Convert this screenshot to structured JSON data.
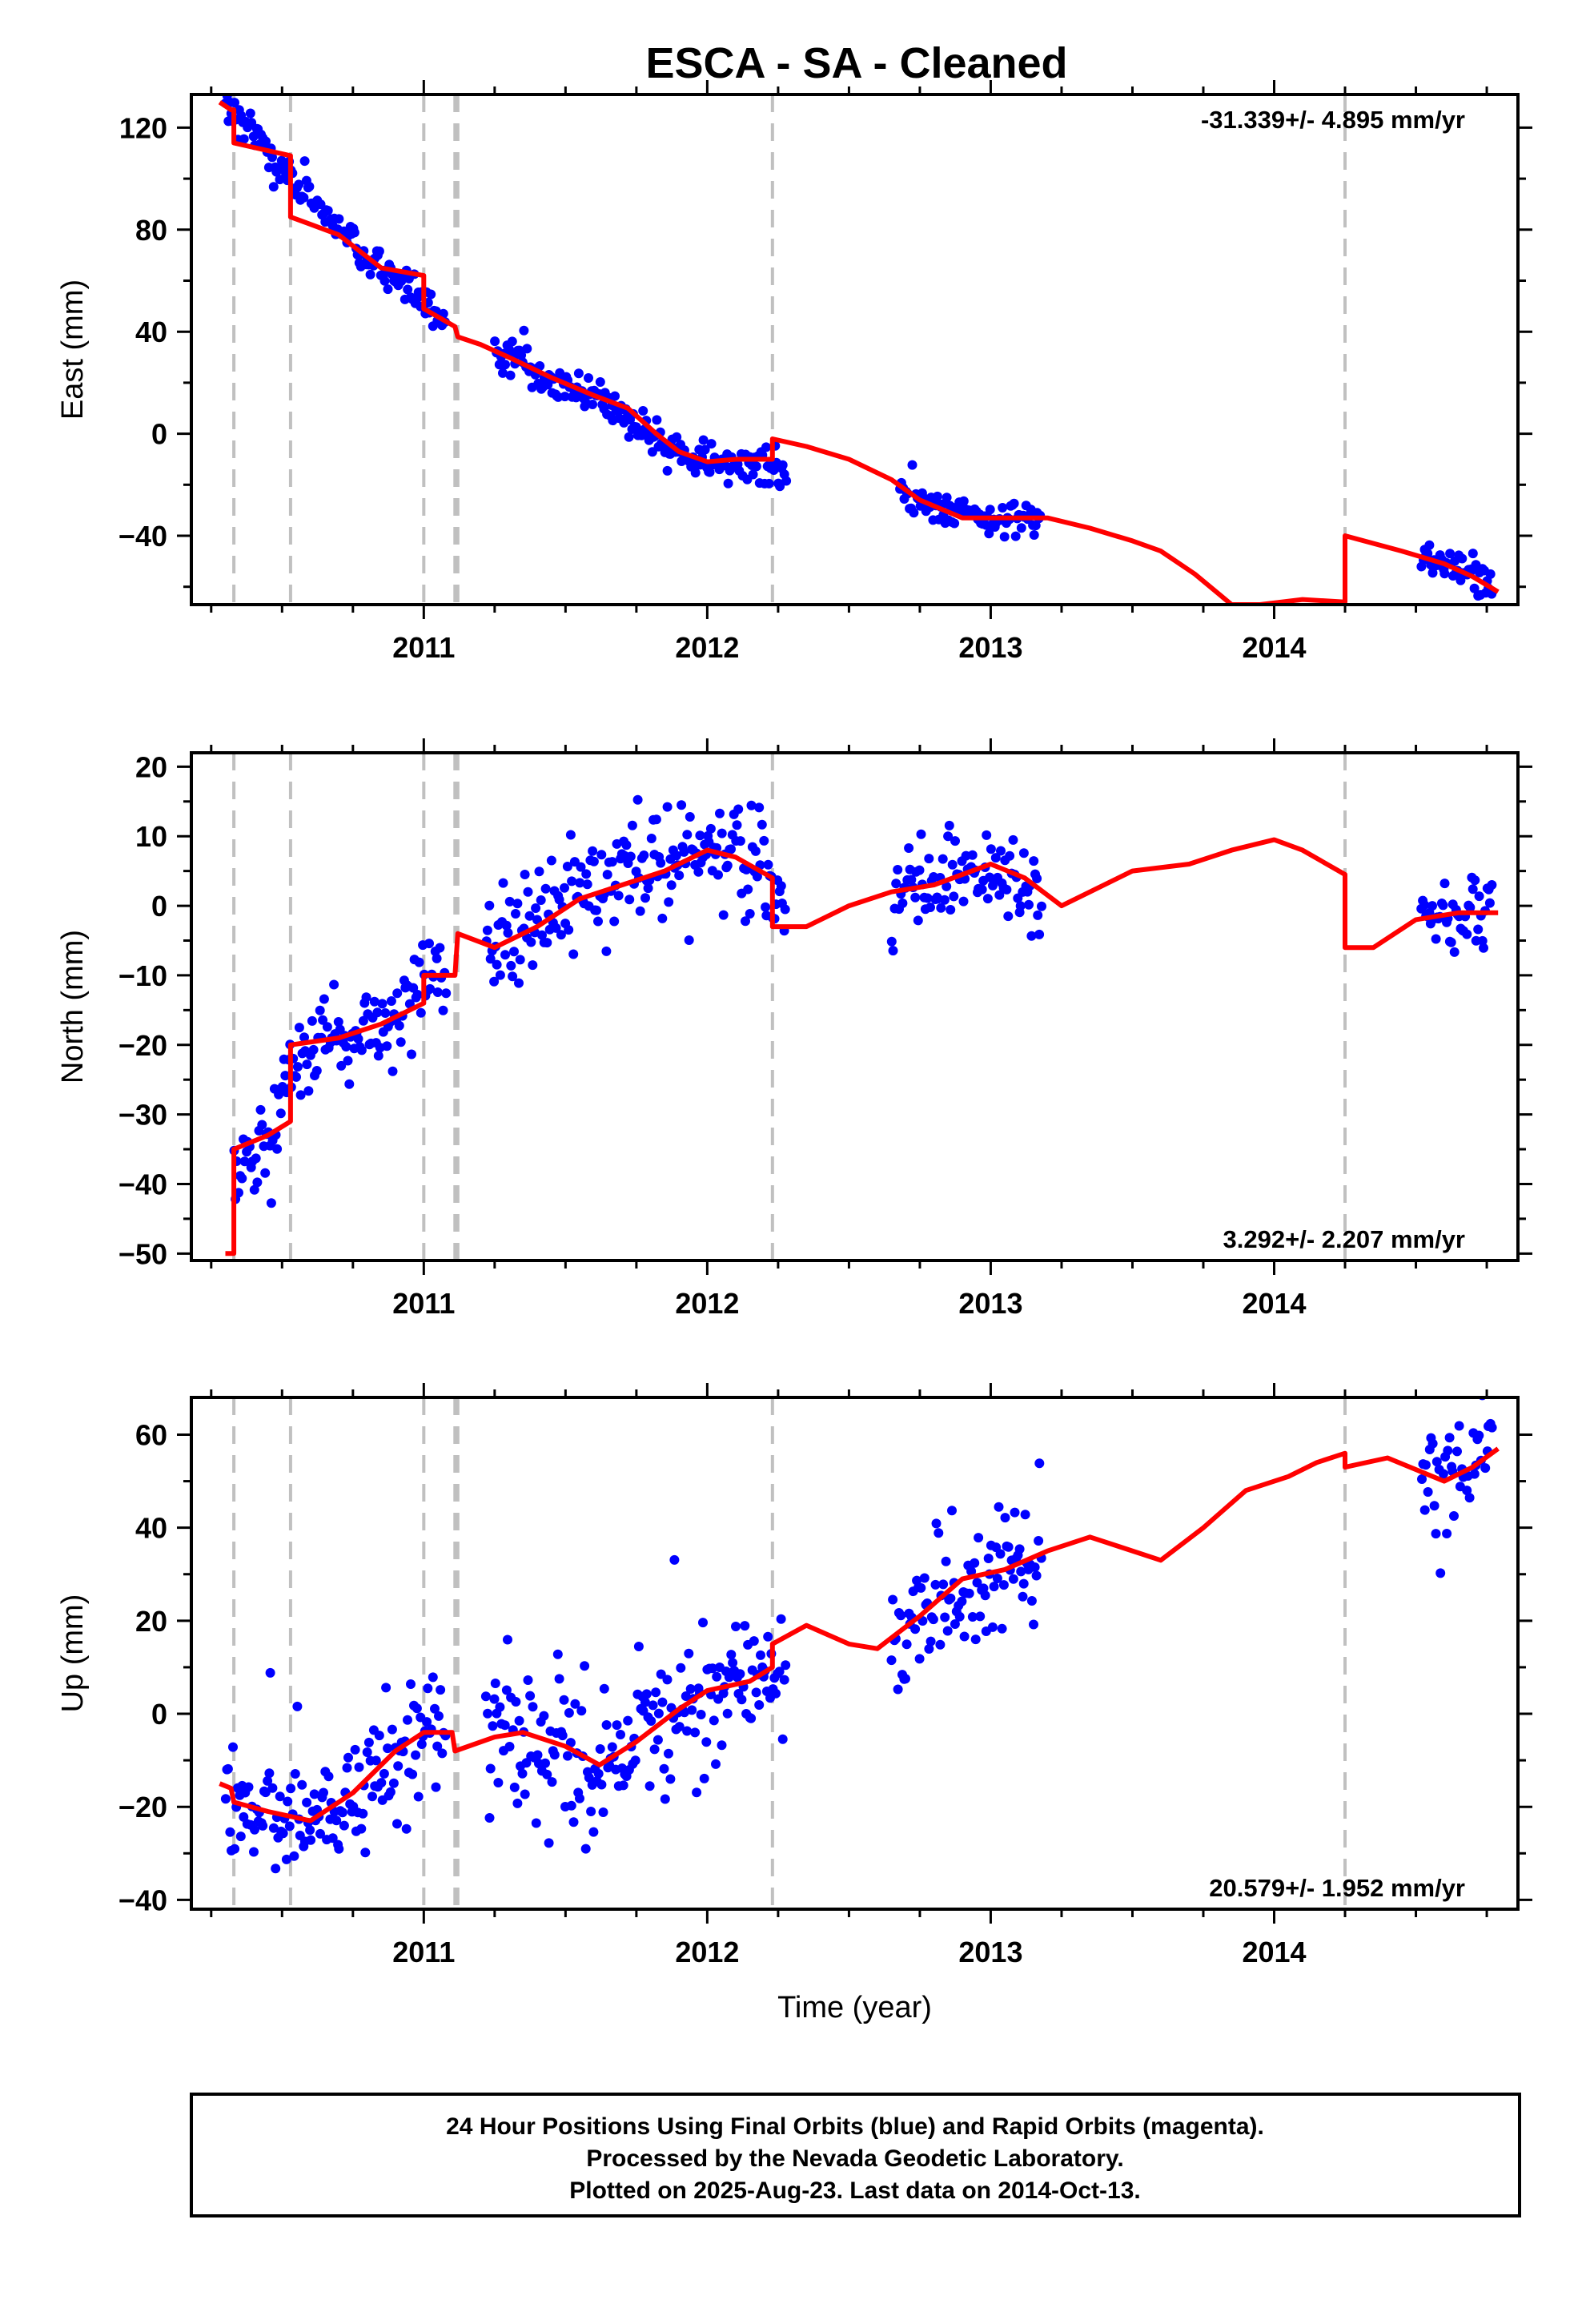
{
  "title": "ESCA  - SA - Cleaned",
  "footer": {
    "line1": "24 Hour Positions Using Final Orbits (blue) and Rapid Orbits (magenta).",
    "line2": "Processed by the Nevada Geodetic Laboratory.",
    "line3": "Plotted on 2025-Aug-23. Last data on 2014-Oct-13."
  },
  "colors": {
    "data": "#0000ff",
    "model": "#ff0000",
    "steps": "#c0c0c0",
    "frame": "#000000"
  },
  "chart_data": [
    {
      "type": "scatter",
      "ylabel": "East (mm)",
      "xlabel": "",
      "rate": "-31.339+/- 4.895 mm/yr",
      "rate_position": "top-right",
      "x_ticks": [
        "2011",
        "2012",
        "2013",
        "2014"
      ],
      "y_ticks": [
        120,
        80,
        40,
        0,
        -40
      ],
      "xlim": [
        2010.18,
        2014.86
      ],
      "ylim": [
        -67,
        133
      ],
      "step_epochs": [
        2010.33,
        2010.53,
        2011.0,
        2011.11,
        2011.12,
        2012.23,
        2014.25
      ],
      "data_segments": [
        {
          "knots": [
            [
              2010.3,
              130
            ],
            [
              2010.4,
              118
            ],
            [
              2010.53,
              100
            ],
            [
              2010.7,
              80
            ],
            [
              2010.85,
              64
            ],
            [
              2011.0,
              52
            ],
            [
              2011.05,
              46
            ],
            [
              2011.08,
              42
            ]
          ],
          "step": 0.0055,
          "spread": 3
        },
        {
          "knots": [
            [
              2011.25,
              33
            ],
            [
              2011.4,
              24
            ],
            [
              2011.6,
              14
            ],
            [
              2011.75,
              4
            ],
            [
              2011.85,
              -5
            ],
            [
              2012.0,
              -11
            ],
            [
              2012.28,
              -13
            ]
          ],
          "step": 0.0055,
          "spread": 3.5
        },
        {
          "knots": [
            [
              2012.68,
              -22
            ],
            [
              2012.85,
              -30
            ],
            [
              2013.0,
              -34
            ],
            [
              2013.18,
              -32
            ]
          ],
          "step": 0.0055,
          "spread": 3
        },
        {
          "knots": [
            [
              2014.52,
              -49
            ],
            [
              2014.65,
              -53
            ],
            [
              2014.77,
              -60
            ]
          ],
          "step": 0.0055,
          "spread": 3
        }
      ],
      "model": [
        [
          2010.28,
          130
        ],
        [
          2010.32,
          127
        ],
        [
          2010.33,
          127
        ],
        [
          2010.33,
          114
        ],
        [
          2010.53,
          109
        ],
        [
          2010.53,
          85
        ],
        [
          2010.7,
          78
        ],
        [
          2010.85,
          65
        ],
        [
          2011.0,
          62
        ],
        [
          2011.0,
          49
        ],
        [
          2011.11,
          42
        ],
        [
          2011.12,
          38
        ],
        [
          2011.2,
          35
        ],
        [
          2011.3,
          30
        ],
        [
          2011.45,
          22
        ],
        [
          2011.6,
          15
        ],
        [
          2011.72,
          10
        ],
        [
          2011.82,
          0
        ],
        [
          2011.9,
          -7
        ],
        [
          2012.0,
          -11
        ],
        [
          2012.1,
          -10
        ],
        [
          2012.23,
          -10
        ],
        [
          2012.23,
          -2
        ],
        [
          2012.35,
          -5
        ],
        [
          2012.5,
          -10
        ],
        [
          2012.65,
          -18
        ],
        [
          2012.75,
          -26
        ],
        [
          2012.9,
          -33
        ],
        [
          2013.05,
          -33
        ],
        [
          2013.2,
          -33
        ],
        [
          2013.35,
          -37
        ],
        [
          2013.5,
          -42
        ],
        [
          2013.6,
          -46
        ],
        [
          2013.72,
          -55
        ],
        [
          2013.85,
          -67
        ],
        [
          2013.95,
          -67
        ],
        [
          2014.1,
          -65
        ],
        [
          2014.25,
          -66
        ],
        [
          2014.25,
          -40
        ],
        [
          2014.45,
          -46
        ],
        [
          2014.6,
          -51
        ],
        [
          2014.7,
          -56
        ],
        [
          2014.79,
          -62
        ]
      ]
    },
    {
      "type": "scatter",
      "ylabel": "North (mm)",
      "xlabel": "",
      "rate": "3.292+/- 2.207 mm/yr",
      "rate_position": "bottom-right",
      "x_ticks": [
        "2011",
        "2012",
        "2013",
        "2014"
      ],
      "y_ticks": [
        20,
        10,
        0,
        -10,
        -20,
        -30,
        -40,
        -50
      ],
      "xlim": [
        2010.18,
        2014.86
      ],
      "ylim": [
        -51,
        22
      ],
      "step_epochs": [
        2010.33,
        2010.53,
        2011.0,
        2011.11,
        2011.12,
        2012.23,
        2014.25
      ],
      "data_segments": [
        {
          "knots": [
            [
              2010.33,
              -40
            ],
            [
              2010.45,
              -33
            ],
            [
              2010.53,
              -22
            ],
            [
              2010.7,
              -19
            ],
            [
              2010.85,
              -17
            ],
            [
              2011.0,
              -12
            ],
            [
              2011.08,
              -9
            ]
          ],
          "step": 0.0055,
          "spread": 3.2
        },
        {
          "knots": [
            [
              2011.22,
              -7
            ],
            [
              2011.35,
              -4
            ],
            [
              2011.5,
              2
            ],
            [
              2011.7,
              4
            ],
            [
              2011.85,
              6
            ],
            [
              2012.0,
              8
            ],
            [
              2012.15,
              6
            ],
            [
              2012.28,
              1
            ]
          ],
          "step": 0.0055,
          "spread": 3.5
        },
        {
          "knots": [
            [
              2012.65,
              2
            ],
            [
              2012.85,
              3
            ],
            [
              2013.0,
              5
            ],
            [
              2013.18,
              2
            ]
          ],
          "step": 0.0055,
          "spread": 2.8
        },
        {
          "knots": [
            [
              2014.52,
              -1
            ],
            [
              2014.65,
              -2
            ],
            [
              2014.77,
              0
            ]
          ],
          "step": 0.0055,
          "spread": 2.6
        }
      ],
      "model": [
        [
          2010.3,
          -50
        ],
        [
          2010.33,
          -50
        ],
        [
          2010.33,
          -35
        ],
        [
          2010.45,
          -33
        ],
        [
          2010.53,
          -31
        ],
        [
          2010.53,
          -20
        ],
        [
          2010.7,
          -19
        ],
        [
          2010.85,
          -17
        ],
        [
          2011.0,
          -14
        ],
        [
          2011.0,
          -10
        ],
        [
          2011.11,
          -10
        ],
        [
          2011.12,
          -4
        ],
        [
          2011.25,
          -6
        ],
        [
          2011.4,
          -3
        ],
        [
          2011.55,
          1
        ],
        [
          2011.7,
          3
        ],
        [
          2011.85,
          5
        ],
        [
          2012.0,
          8
        ],
        [
          2012.1,
          7
        ],
        [
          2012.23,
          4
        ],
        [
          2012.23,
          -3
        ],
        [
          2012.35,
          -3
        ],
        [
          2012.5,
          0
        ],
        [
          2012.65,
          2
        ],
        [
          2012.8,
          3
        ],
        [
          2013.0,
          6
        ],
        [
          2013.12,
          4
        ],
        [
          2013.25,
          0
        ],
        [
          2013.35,
          2
        ],
        [
          2013.5,
          5
        ],
        [
          2013.7,
          6
        ],
        [
          2013.85,
          8
        ],
        [
          2014.0,
          9.5
        ],
        [
          2014.1,
          8
        ],
        [
          2014.25,
          4.5
        ],
        [
          2014.25,
          -6
        ],
        [
          2014.35,
          -6
        ],
        [
          2014.5,
          -2
        ],
        [
          2014.65,
          -1
        ],
        [
          2014.79,
          -1
        ]
      ]
    },
    {
      "type": "scatter",
      "ylabel": "Up (mm)",
      "xlabel": "Time (year)",
      "rate": "20.579+/- 1.952 mm/yr",
      "rate_position": "bottom-right",
      "x_ticks": [
        "2011",
        "2012",
        "2013",
        "2014"
      ],
      "y_ticks": [
        60,
        40,
        20,
        0,
        -20,
        -40
      ],
      "xlim": [
        2010.18,
        2014.86
      ],
      "ylim": [
        -42,
        68
      ],
      "step_epochs": [
        2010.33,
        2010.53,
        2011.0,
        2011.11,
        2011.12,
        2012.23,
        2014.25
      ],
      "data_segments": [
        {
          "knots": [
            [
              2010.3,
              -17
            ],
            [
              2010.45,
              -22
            ],
            [
              2010.6,
              -23
            ],
            [
              2010.75,
              -16
            ],
            [
              2010.9,
              -8
            ],
            [
              2011.0,
              -3
            ],
            [
              2011.08,
              -2
            ]
          ],
          "step": 0.0055,
          "spread": 7
        },
        {
          "knots": [
            [
              2011.22,
              -3
            ],
            [
              2011.35,
              -4
            ],
            [
              2011.5,
              -8
            ],
            [
              2011.62,
              -12
            ],
            [
              2011.75,
              -5
            ],
            [
              2011.9,
              0
            ],
            [
              2012.05,
              5
            ],
            [
              2012.2,
              8
            ],
            [
              2012.28,
              8
            ]
          ],
          "step": 0.0055,
          "spread": 7.5
        },
        {
          "knots": [
            [
              2012.65,
              17
            ],
            [
              2012.8,
              24
            ],
            [
              2012.95,
              28
            ],
            [
              2013.05,
              31
            ],
            [
              2013.18,
              33
            ]
          ],
          "step": 0.0055,
          "spread": 7
        },
        {
          "knots": [
            [
              2014.52,
              53
            ],
            [
              2014.65,
              52
            ],
            [
              2014.77,
              57
            ]
          ],
          "step": 0.0055,
          "spread": 7
        }
      ],
      "model": [
        [
          2010.28,
          -15
        ],
        [
          2010.32,
          -16
        ],
        [
          2010.33,
          -19
        ],
        [
          2010.45,
          -21
        ],
        [
          2010.6,
          -23
        ],
        [
          2010.75,
          -17
        ],
        [
          2010.9,
          -8
        ],
        [
          2011.0,
          -4
        ],
        [
          2011.1,
          -4
        ],
        [
          2011.11,
          -8
        ],
        [
          2011.25,
          -5
        ],
        [
          2011.35,
          -4
        ],
        [
          2011.5,
          -7
        ],
        [
          2011.62,
          -11
        ],
        [
          2011.75,
          -6
        ],
        [
          2011.9,
          1
        ],
        [
          2012.0,
          5
        ],
        [
          2012.15,
          7
        ],
        [
          2012.23,
          10
        ],
        [
          2012.23,
          15
        ],
        [
          2012.35,
          19
        ],
        [
          2012.5,
          15
        ],
        [
          2012.6,
          14
        ],
        [
          2012.75,
          21
        ],
        [
          2012.9,
          29
        ],
        [
          2013.05,
          31
        ],
        [
          2013.2,
          35
        ],
        [
          2013.35,
          38
        ],
        [
          2013.45,
          36
        ],
        [
          2013.6,
          33
        ],
        [
          2013.75,
          40
        ],
        [
          2013.9,
          48
        ],
        [
          2014.05,
          51
        ],
        [
          2014.15,
          54
        ],
        [
          2014.25,
          56
        ],
        [
          2014.25,
          53
        ],
        [
          2014.4,
          55
        ],
        [
          2014.6,
          50
        ],
        [
          2014.7,
          53
        ],
        [
          2014.79,
          57
        ]
      ]
    }
  ]
}
